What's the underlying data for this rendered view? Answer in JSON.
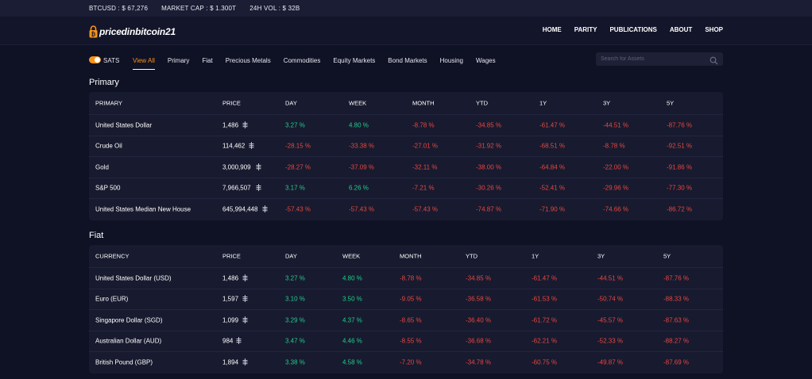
{
  "ticker": {
    "btcusd": "BTCUSD : $ 67,276",
    "market_cap": "MARKET CAP : $ 1.300T",
    "vol": "24H VOL : $ 32B"
  },
  "brand": {
    "name": "pricedinbitcoin21",
    "accent": "#f7931a"
  },
  "nav": [
    "HOME",
    "PARITY",
    "PUBLICATIONS",
    "ABOUT",
    "SHOP"
  ],
  "toggle": {
    "label": "SATS",
    "on": true
  },
  "filters": [
    "View All",
    "Primary",
    "Fiat",
    "Precious Metals",
    "Commodities",
    "Equity Markets",
    "Bond Markets",
    "Housing",
    "Wages"
  ],
  "active_filter": "View All",
  "search": {
    "placeholder": "Search for Assets",
    "value": ""
  },
  "colors": {
    "positive": "#1fce8b",
    "negative": "#e5483f",
    "background": "#0f1125",
    "panel": "#181a2f"
  },
  "primary": {
    "title": "Primary",
    "columns": [
      "PRIMARY",
      "PRICE",
      "DAY",
      "WEEK",
      "MONTH",
      "YTD",
      "1Y",
      "3Y",
      "5Y"
    ],
    "rows": [
      [
        "United States Dollar",
        "1,486",
        "3.27 %",
        "4.80 %",
        "-8.78 %",
        "-34.85 %",
        "-61.47 %",
        "-44.51 %",
        "-87.76 %"
      ],
      [
        "Crude Oil",
        "114,462",
        "-28.15 %",
        "-33.38 %",
        "-27.01 %",
        "-31.92 %",
        "-68.51 %",
        "-8.78 %",
        "-92.51 %"
      ],
      [
        "Gold",
        "3,000,909",
        "-28.27 %",
        "-37.09 %",
        "-32.11 %",
        "-38.00 %",
        "-64.84 %",
        "-22.00 %",
        "-91.86 %"
      ],
      [
        "S&P 500",
        "7,966,507",
        "3.17 %",
        "6.26 %",
        "-7.21 %",
        "-30.26 %",
        "-52.41 %",
        "-29.96 %",
        "-77.30 %"
      ],
      [
        "United States Median New House",
        "645,994,448",
        "-57.43 %",
        "-57.43 %",
        "-57.43 %",
        "-74.87 %",
        "-71.90 %",
        "-74.66 %",
        "-86.72 %"
      ]
    ]
  },
  "fiat": {
    "title": "Fiat",
    "columns": [
      "CURRENCY",
      "PRICE",
      "DAY",
      "WEEK",
      "MONTH",
      "YTD",
      "1Y",
      "3Y",
      "5Y"
    ],
    "rows": [
      [
        "United States Dollar (USD)",
        "1,486",
        "3.27 %",
        "4.80 %",
        "-8.78 %",
        "-34.85 %",
        "-61.47 %",
        "-44.51 %",
        "-87.76 %"
      ],
      [
        "Euro (EUR)",
        "1,597",
        "3.10 %",
        "3.50 %",
        "-9.05 %",
        "-36.58 %",
        "-61.53 %",
        "-50.74 %",
        "-88.33 %"
      ],
      [
        "Singapore Dollar (SGD)",
        "1,099",
        "3.29 %",
        "4.37 %",
        "-8.65 %",
        "-36.40 %",
        "-61.72 %",
        "-45.57 %",
        "-87.63 %"
      ],
      [
        "Australian Dollar (AUD)",
        "984",
        "3.47 %",
        "4.46 %",
        "-8.55 %",
        "-36.68 %",
        "-62.21 %",
        "-52.33 %",
        "-88.27 %"
      ],
      [
        "British Pound (GBP)",
        "1,894",
        "3.38 %",
        "4.58 %",
        "-7.20 %",
        "-34.78 %",
        "-60.75 %",
        "-49.87 %",
        "-87.69 %"
      ]
    ]
  }
}
